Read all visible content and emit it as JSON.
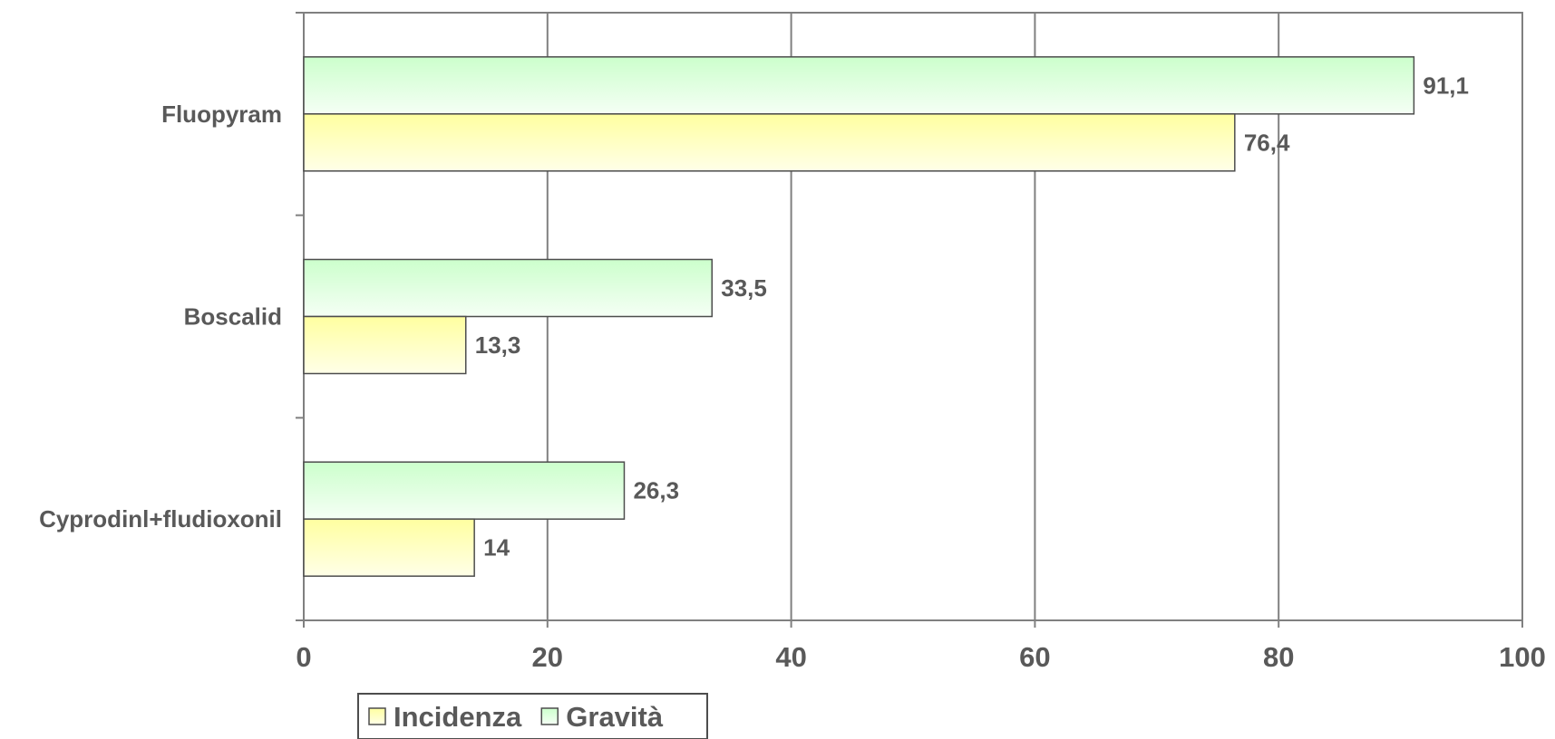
{
  "chart_data": {
    "type": "bar",
    "orientation": "horizontal",
    "categories": [
      "Fluopyram",
      "Boscalid",
      "Cyprodinl+fludioxonil"
    ],
    "series": [
      {
        "name": "Incidenza",
        "values": [
          76.4,
          13.3,
          14
        ],
        "labels": [
          "76,4",
          "13,3",
          "14"
        ],
        "color_top": "#ffffa0",
        "color_bottom": "#ffffe8"
      },
      {
        "name": "Gravità",
        "values": [
          91.1,
          33.5,
          26.3
        ],
        "labels": [
          "91,1",
          "33,5",
          "26,3"
        ],
        "color_top": "#ccffcc",
        "color_bottom": "#f5fff5"
      }
    ],
    "xticks": [
      "0",
      "20",
      "40",
      "60",
      "80",
      "100"
    ],
    "xlim": [
      0,
      100
    ],
    "grid": true,
    "legend_position": "bottom-left",
    "title": "",
    "xlabel": "",
    "ylabel": ""
  }
}
